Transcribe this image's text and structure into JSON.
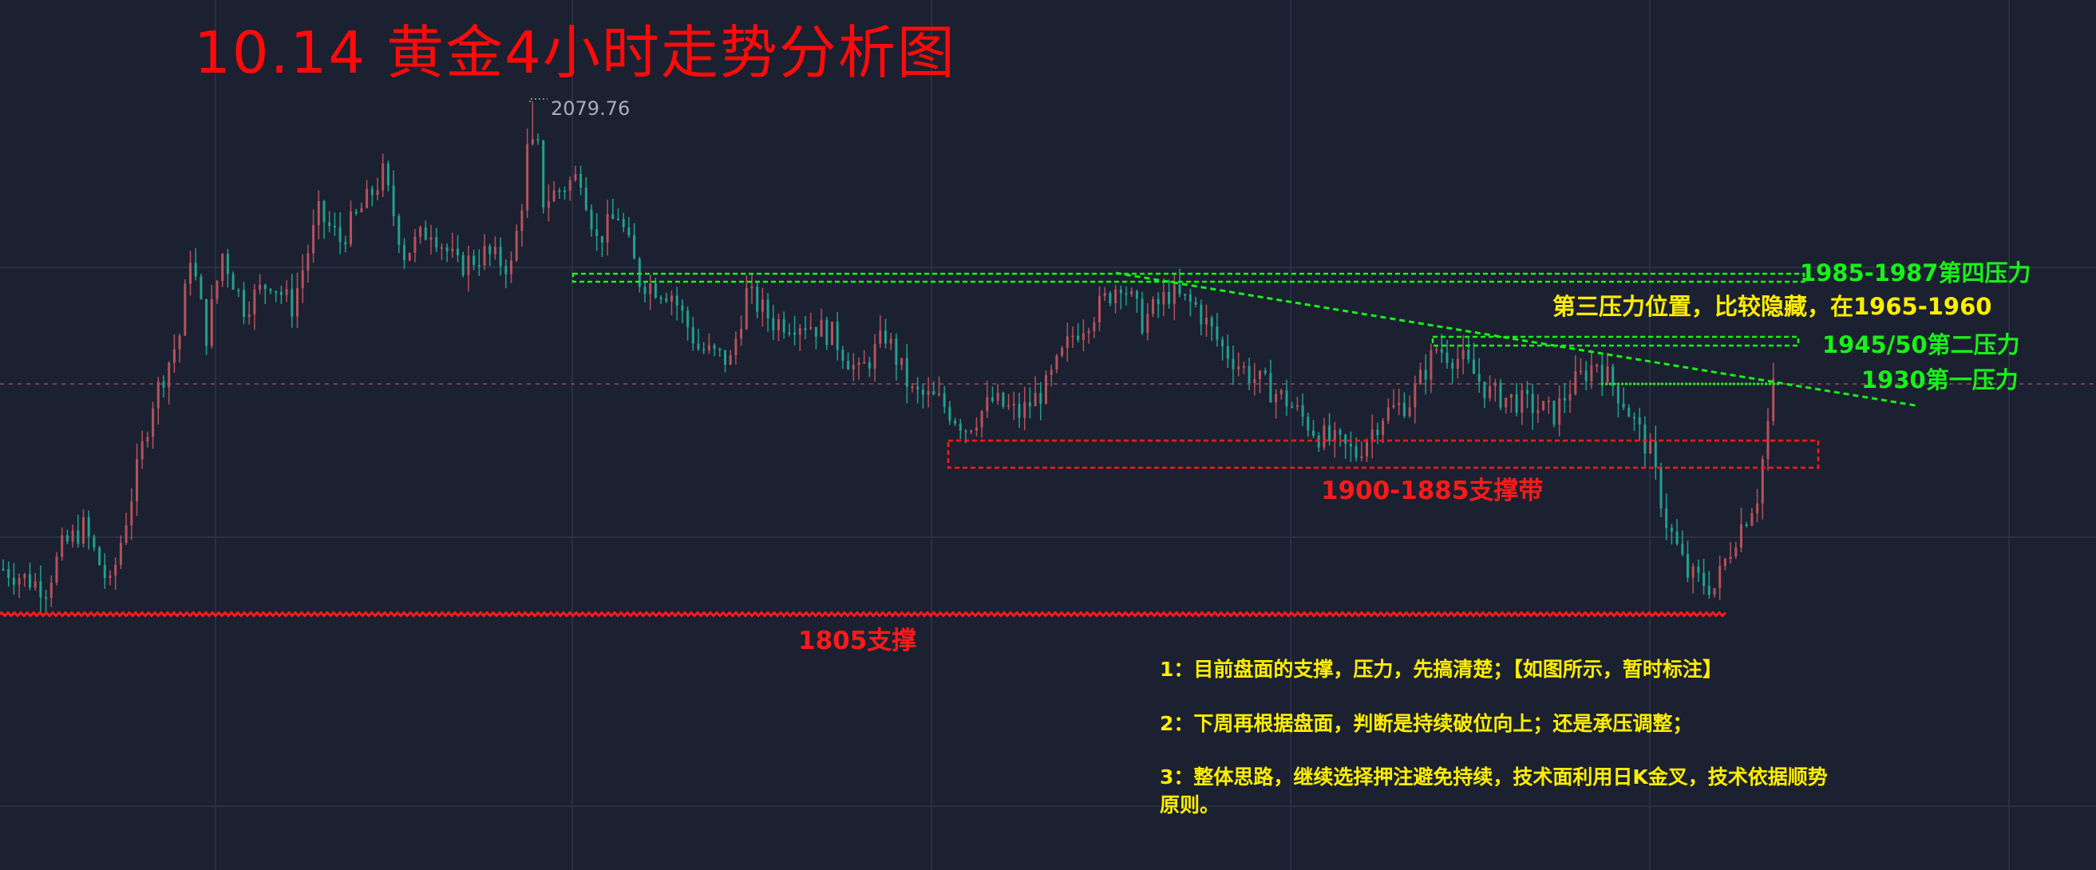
{
  "title": "10.14 黄金4小时走势分析图",
  "chart_data": {
    "type": "candlestick",
    "title": "10.14 黄金4小时走势分析图",
    "timeframe": "4小时",
    "instrument": "黄金",
    "grid": true,
    "high_label": "2079.76",
    "high_value": 2079.76,
    "ylim": [
      1790,
      2100
    ],
    "approx_close_path": [
      [
        0,
        1832
      ],
      [
        8,
        1822
      ],
      [
        11,
        1843
      ],
      [
        15,
        1854
      ],
      [
        20,
        1822
      ],
      [
        24,
        1871
      ],
      [
        28,
        1921
      ],
      [
        33,
        1956
      ],
      [
        35,
        1999
      ],
      [
        38,
        1956
      ],
      [
        41,
        1999
      ],
      [
        45,
        1971
      ],
      [
        50,
        1985
      ],
      [
        54,
        1971
      ],
      [
        59,
        2020
      ],
      [
        63,
        2006
      ],
      [
        68,
        2027
      ],
      [
        71,
        2041
      ],
      [
        75,
        1999
      ],
      [
        80,
        2013
      ],
      [
        85,
        1992
      ],
      [
        90,
        1999
      ],
      [
        95,
        1992
      ],
      [
        97,
        2027
      ],
      [
        99,
        2080
      ],
      [
        101,
        2027
      ],
      [
        108,
        2041
      ],
      [
        111,
        2006
      ],
      [
        115,
        2020
      ],
      [
        119,
        1985
      ],
      [
        125,
        1978
      ],
      [
        130,
        1949
      ],
      [
        136,
        1942
      ],
      [
        139,
        1978
      ],
      [
        144,
        1963
      ],
      [
        150,
        1963
      ],
      [
        155,
        1956
      ],
      [
        160,
        1935
      ],
      [
        165,
        1956
      ],
      [
        170,
        1925
      ],
      [
        175,
        1921
      ],
      [
        180,
        1907
      ],
      [
        185,
        1921
      ],
      [
        190,
        1914
      ],
      [
        195,
        1928
      ],
      [
        200,
        1956
      ],
      [
        205,
        1971
      ],
      [
        209,
        1985
      ],
      [
        213,
        1963
      ],
      [
        218,
        1978
      ],
      [
        223,
        1971
      ],
      [
        228,
        1949
      ],
      [
        233,
        1935
      ],
      [
        240,
        1921
      ],
      [
        246,
        1903
      ],
      [
        253,
        1893
      ],
      [
        258,
        1914
      ],
      [
        263,
        1921
      ],
      [
        268,
        1949
      ],
      [
        273,
        1942
      ],
      [
        278,
        1925
      ],
      [
        283,
        1921
      ],
      [
        290,
        1914
      ],
      [
        293,
        1928
      ],
      [
        298,
        1942
      ],
      [
        303,
        1921
      ],
      [
        308,
        1893
      ],
      [
        311,
        1857
      ],
      [
        315,
        1829
      ],
      [
        320,
        1822
      ],
      [
        324,
        1850
      ],
      [
        328,
        1871
      ],
      [
        331,
        1928
      ]
    ],
    "current_price_line": 1930,
    "levels": {
      "fourth_resistance": {
        "label": "1985-1987第四压力",
        "range": [
          1985,
          1987
        ],
        "color": "#19f019"
      },
      "third_resistance": {
        "label": "第三压力位置，比较隐藏，在1965-1960",
        "range": [
          1960,
          1965
        ],
        "color": "#ffee00"
      },
      "second_resistance": {
        "label": "1945/50第二压力",
        "range": [
          1945,
          1950
        ],
        "color": "#19f019"
      },
      "first_resistance": {
        "label": "1930第一压力",
        "value": 1930,
        "color": "#19f019"
      },
      "support_band": {
        "label": "1900-1885支撑带",
        "range": [
          1885,
          1900
        ],
        "color": "#ff1a1a"
      },
      "support": {
        "label": "1805支撑",
        "value": 1805,
        "color": "#ff1a1a"
      }
    },
    "trendline": {
      "from": [
        125,
        1987
      ],
      "to": [
        358,
        1917
      ],
      "color": "#19f019"
    }
  },
  "notes": [
    "1：目前盘面的支撑，压力，先搞清楚；【如图所示，暂时标注】",
    "2：下周再根据盘面，判断是持续破位向上；还是承压调整；",
    "3：整体思路，继续选择押注避免持续，技术面利用日K金叉，技术依据顺势",
    "原则。"
  ],
  "colors": {
    "background": "#1b2130",
    "grid": "#283042",
    "up": "#b5525c",
    "down": "#23a08f"
  }
}
